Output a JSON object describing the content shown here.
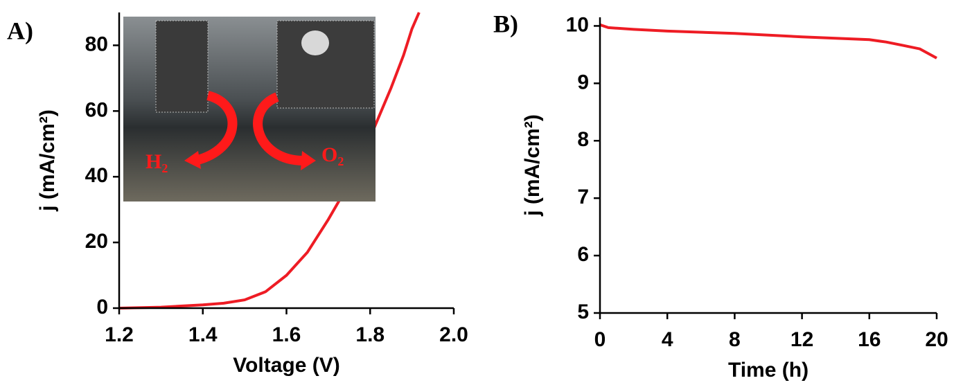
{
  "chart_data": [
    {
      "type": "line",
      "panel_label": "A)",
      "x_label": "Voltage (V)",
      "y_label": "j (mA/cm²)",
      "xlim": [
        1.2,
        2.0
      ],
      "xticks": [
        1.2,
        1.4,
        1.6,
        1.8,
        {
          "value": 2.0,
          "label": "2.0"
        }
      ],
      "ylim": [
        0,
        90
      ],
      "yticks": [
        0,
        20,
        40,
        60,
        80
      ],
      "annotations": [
        "H₂",
        "O₂"
      ],
      "series": [
        {
          "color": "#ee1c24",
          "x": [
            1.2,
            1.3,
            1.4,
            1.45,
            1.5,
            1.55,
            1.6,
            1.65,
            1.7,
            1.75,
            1.8,
            1.85,
            1.88,
            1.9,
            1.917
          ],
          "values": [
            0,
            0.3,
            1,
            1.5,
            2.5,
            5,
            10,
            17,
            27,
            38,
            52,
            67,
            77,
            85,
            90
          ]
        }
      ]
    },
    {
      "type": "line",
      "panel_label": "B)",
      "x_label": "Time (h)",
      "y_label": "j (mA/cm²)",
      "xlim": [
        0,
        20
      ],
      "xticks": [
        0,
        4,
        8,
        12,
        16,
        20
      ],
      "ylim": [
        5,
        10.15
      ],
      "yticks": [
        5,
        6,
        7,
        8,
        9,
        10
      ],
      "series": [
        {
          "color": "#ee1c24",
          "x": [
            0,
            0.5,
            2,
            4,
            8,
            12,
            16,
            17,
            18,
            19,
            20
          ],
          "values": [
            10.02,
            9.97,
            9.94,
            9.91,
            9.87,
            9.81,
            9.76,
            9.72,
            9.66,
            9.6,
            9.44
          ]
        }
      ]
    }
  ]
}
